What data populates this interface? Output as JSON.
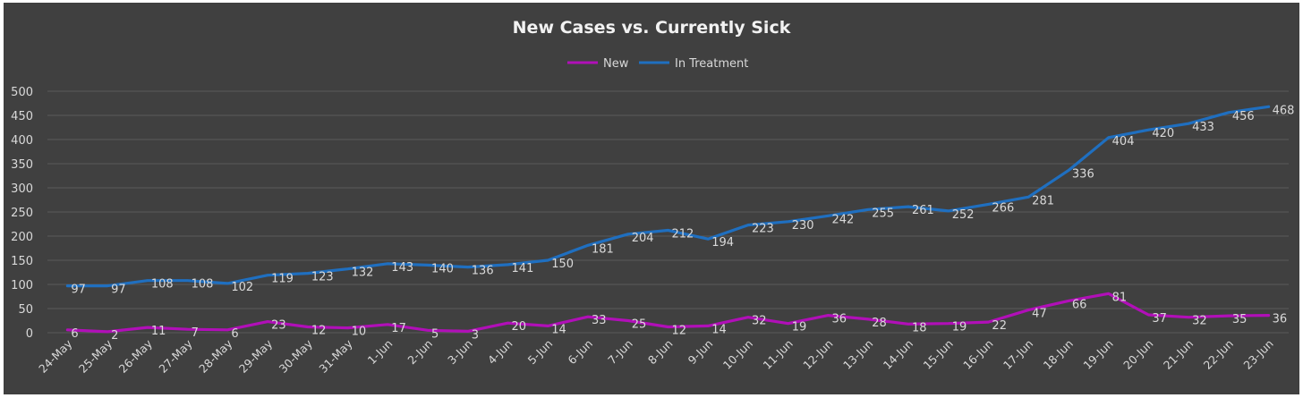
{
  "colors": {
    "background": "#404040",
    "grid": "#5a5a5a",
    "text": "#d9d9d9",
    "title": "#f2f2f2",
    "new": "#b10fb8",
    "in_treatment": "#1f6fc0"
  },
  "chart_data": {
    "type": "line",
    "title": "New Cases vs. Currently Sick",
    "xlabel": "",
    "ylabel": "",
    "ylim": [
      0,
      500
    ],
    "yticks": [
      0,
      50,
      100,
      150,
      200,
      250,
      300,
      350,
      400,
      450,
      500
    ],
    "grid": true,
    "legend_position": "top-center",
    "categories": [
      "24-May",
      "25-May",
      "26-May",
      "27-May",
      "28-May",
      "29-May",
      "30-May",
      "31-May",
      "1-Jun",
      "2-Jun",
      "3-Jun",
      "4-Jun",
      "5-Jun",
      "6-Jun",
      "7-Jun",
      "8-Jun",
      "9-Jun",
      "10-Jun",
      "11-Jun",
      "12-Jun",
      "13-Jun",
      "14-Jun",
      "15-Jun",
      "16-Jun",
      "17-Jun",
      "18-Jun",
      "19-Jun",
      "20-Jun",
      "21-Jun",
      "22-Jun",
      "23-Jun"
    ],
    "series": [
      {
        "name": "New",
        "color": "#b10fb8",
        "values": [
          6,
          2,
          11,
          7,
          6,
          23,
          12,
          10,
          17,
          5,
          3,
          20,
          14,
          33,
          25,
          12,
          14,
          32,
          19,
          36,
          28,
          18,
          19,
          22,
          47,
          66,
          81,
          37,
          32,
          35,
          36
        ]
      },
      {
        "name": "In Treatment",
        "color": "#1f6fc0",
        "values": [
          97,
          97,
          108,
          108,
          102,
          119,
          123,
          132,
          143,
          140,
          136,
          141,
          150,
          181,
          204,
          212,
          194,
          223,
          230,
          242,
          255,
          261,
          252,
          266,
          281,
          336,
          404,
          420,
          433,
          456,
          468
        ]
      }
    ]
  }
}
